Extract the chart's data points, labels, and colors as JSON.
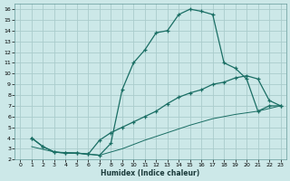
{
  "xlabel": "Humidex (Indice chaleur)",
  "bg_color": "#cce8e8",
  "grid_color": "#aacccc",
  "line_color": "#1a6e64",
  "xlim": [
    -0.5,
    23.5
  ],
  "ylim": [
    2,
    16.5
  ],
  "yticks": [
    2,
    3,
    4,
    5,
    6,
    7,
    8,
    9,
    10,
    11,
    12,
    13,
    14,
    15,
    16
  ],
  "xticks": [
    0,
    1,
    2,
    3,
    4,
    5,
    6,
    7,
    8,
    9,
    10,
    11,
    12,
    13,
    14,
    15,
    16,
    17,
    18,
    19,
    20,
    21,
    22,
    23
  ],
  "line1_x": [
    1,
    2,
    3,
    4,
    5,
    6,
    7,
    8,
    9,
    10,
    11,
    12,
    13,
    14,
    15,
    16,
    17,
    18,
    19,
    20,
    21,
    22,
    23
  ],
  "line1_y": [
    4.0,
    3.2,
    2.7,
    2.6,
    2.6,
    2.5,
    2.4,
    3.5,
    8.5,
    11.0,
    12.2,
    13.8,
    14.0,
    15.5,
    16.0,
    15.8,
    15.5,
    11.0,
    10.5,
    9.5,
    6.5,
    7.0,
    7.0
  ],
  "line2_x": [
    1,
    2,
    3,
    4,
    5,
    6,
    7,
    8,
    9,
    10,
    11,
    12,
    13,
    14,
    15,
    16,
    17,
    18,
    19,
    20,
    21,
    22,
    23
  ],
  "line2_y": [
    4.0,
    3.2,
    2.7,
    2.6,
    2.6,
    2.5,
    3.8,
    4.5,
    5.0,
    5.5,
    6.0,
    6.5,
    7.2,
    7.8,
    8.2,
    8.5,
    9.0,
    9.2,
    9.6,
    9.8,
    9.5,
    7.5,
    7.0
  ],
  "line3_x": [
    1,
    3,
    5,
    7,
    9,
    11,
    13,
    15,
    17,
    19,
    21,
    23
  ],
  "line3_y": [
    3.2,
    2.7,
    2.6,
    2.4,
    3.0,
    3.8,
    4.5,
    5.2,
    5.8,
    6.2,
    6.5,
    7.0
  ]
}
